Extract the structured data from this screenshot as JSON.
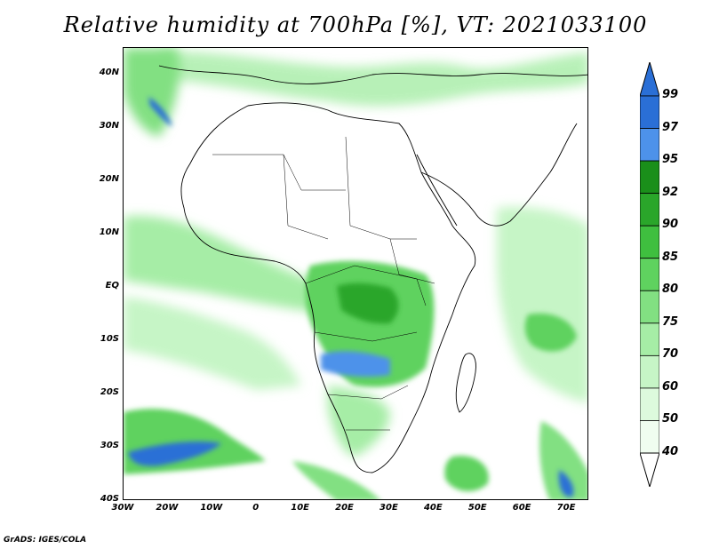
{
  "title": "Relative humidity at 700hPa [%], VT: 2021033100",
  "credit": "GrADS: IGES/COLA",
  "map": {
    "lon_range": [
      -30,
      75
    ],
    "lat_range": [
      -40,
      45
    ],
    "lat_ticks": [
      {
        "value": 40,
        "label": "40N"
      },
      {
        "value": 30,
        "label": "30N"
      },
      {
        "value": 20,
        "label": "20N"
      },
      {
        "value": 10,
        "label": "10N"
      },
      {
        "value": 0,
        "label": "EQ"
      },
      {
        "value": -10,
        "label": "10S"
      },
      {
        "value": -20,
        "label": "20S"
      },
      {
        "value": -30,
        "label": "30S"
      },
      {
        "value": -40,
        "label": "40S"
      }
    ],
    "lon_ticks": [
      {
        "value": -30,
        "label": "30W"
      },
      {
        "value": -20,
        "label": "20W"
      },
      {
        "value": -10,
        "label": "10W"
      },
      {
        "value": 0,
        "label": "0"
      },
      {
        "value": 10,
        "label": "10E"
      },
      {
        "value": 20,
        "label": "20E"
      },
      {
        "value": 30,
        "label": "30E"
      },
      {
        "value": 40,
        "label": "40E"
      },
      {
        "value": 50,
        "label": "50E"
      },
      {
        "value": 60,
        "label": "60E"
      },
      {
        "value": 70,
        "label": "70E"
      }
    ]
  },
  "colorbar": {
    "levels": [
      "99",
      "97",
      "95",
      "92",
      "90",
      "85",
      "80",
      "75",
      "70",
      "60",
      "50",
      "40"
    ],
    "colors": [
      "#2a6fd6",
      "#4d92ea",
      "#1a8f1a",
      "#2aa62a",
      "#3fbf3f",
      "#5fd25f",
      "#82e082",
      "#a6eda6",
      "#c6f5c6",
      "#ddfadd",
      "#f0fdf0"
    ],
    "top_color": "#2a6fd6",
    "bottom_color": "#ffffff"
  }
}
